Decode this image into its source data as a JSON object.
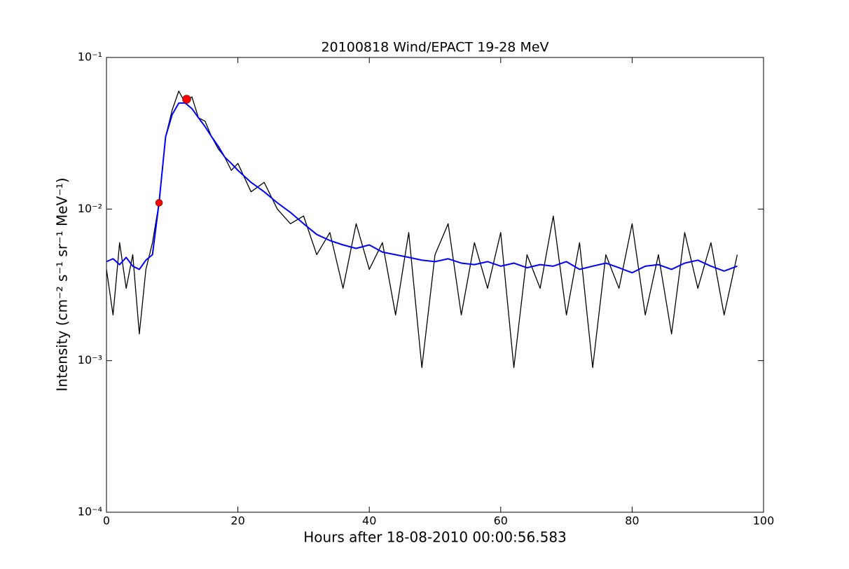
{
  "chart_data": {
    "type": "line",
    "title": "20100818 Wind/EPACT 19-28 MeV",
    "x_label": "Hours after 18-08-2010 00:00:56.583",
    "y_label": "Intensity (cm⁻² s⁻¹ sr⁻¹ MeV⁻¹)",
    "x": [
      0,
      1,
      2,
      3,
      4,
      5,
      6,
      7,
      8,
      9,
      10,
      11,
      12,
      13,
      14,
      15,
      16,
      17,
      18,
      19,
      20,
      22,
      24,
      26,
      28,
      30,
      32,
      34,
      36,
      38,
      40,
      42,
      44,
      46,
      48,
      50,
      52,
      54,
      56,
      58,
      60,
      62,
      64,
      66,
      68,
      70,
      72,
      74,
      76,
      78,
      80,
      82,
      84,
      86,
      88,
      90,
      92,
      94,
      96
    ],
    "series": [
      {
        "color": "#000000",
        "values": [
          0.004,
          0.002,
          0.006,
          0.003,
          0.005,
          0.0015,
          0.004,
          0.006,
          0.011,
          0.03,
          0.045,
          0.06,
          0.05,
          0.055,
          0.04,
          0.038,
          0.03,
          0.025,
          0.022,
          0.018,
          0.02,
          0.013,
          0.015,
          0.01,
          0.008,
          0.009,
          0.005,
          0.007,
          0.003,
          0.008,
          0.004,
          0.006,
          0.002,
          0.007,
          0.0009,
          0.005,
          0.008,
          0.002,
          0.006,
          0.003,
          0.007,
          0.0009,
          0.005,
          0.003,
          0.009,
          0.002,
          0.006,
          0.0009,
          0.005,
          0.003,
          0.008,
          0.002,
          0.005,
          0.0015,
          0.007,
          0.003,
          0.006,
          0.002,
          0.005
        ]
      },
      {
        "color": "#0000ff",
        "values": [
          0.0045,
          0.0047,
          0.0043,
          0.0048,
          0.0042,
          0.004,
          0.0046,
          0.005,
          0.011,
          0.03,
          0.042,
          0.05,
          0.05,
          0.046,
          0.04,
          0.035,
          0.03,
          0.026,
          0.022,
          0.02,
          0.018,
          0.015,
          0.013,
          0.011,
          0.0095,
          0.008,
          0.0068,
          0.0062,
          0.0058,
          0.0055,
          0.0058,
          0.0052,
          0.005,
          0.0048,
          0.0046,
          0.0045,
          0.0047,
          0.0044,
          0.0043,
          0.0045,
          0.0042,
          0.0044,
          0.0041,
          0.0043,
          0.0042,
          0.0045,
          0.004,
          0.0042,
          0.0044,
          0.0041,
          0.0038,
          0.0042,
          0.0043,
          0.004,
          0.0044,
          0.0046,
          0.0042,
          0.0039,
          0.0042
        ]
      }
    ],
    "markers": {
      "x": [
        8,
        12.2
      ],
      "values": [
        0.011,
        0.053
      ],
      "color": "#ff0000"
    },
    "xlim": [
      0,
      100
    ],
    "xticks": [
      0,
      20,
      40,
      60,
      80,
      100
    ],
    "ylim": [
      0.0001,
      0.1
    ],
    "log_y": true,
    "yticks": [
      {
        "value": 0.0001,
        "label": "10⁻⁴"
      },
      {
        "value": 0.001,
        "label": "10⁻³"
      },
      {
        "value": 0.01,
        "label": "10⁻²"
      },
      {
        "value": 0.1,
        "label": "10⁻¹"
      }
    ]
  }
}
